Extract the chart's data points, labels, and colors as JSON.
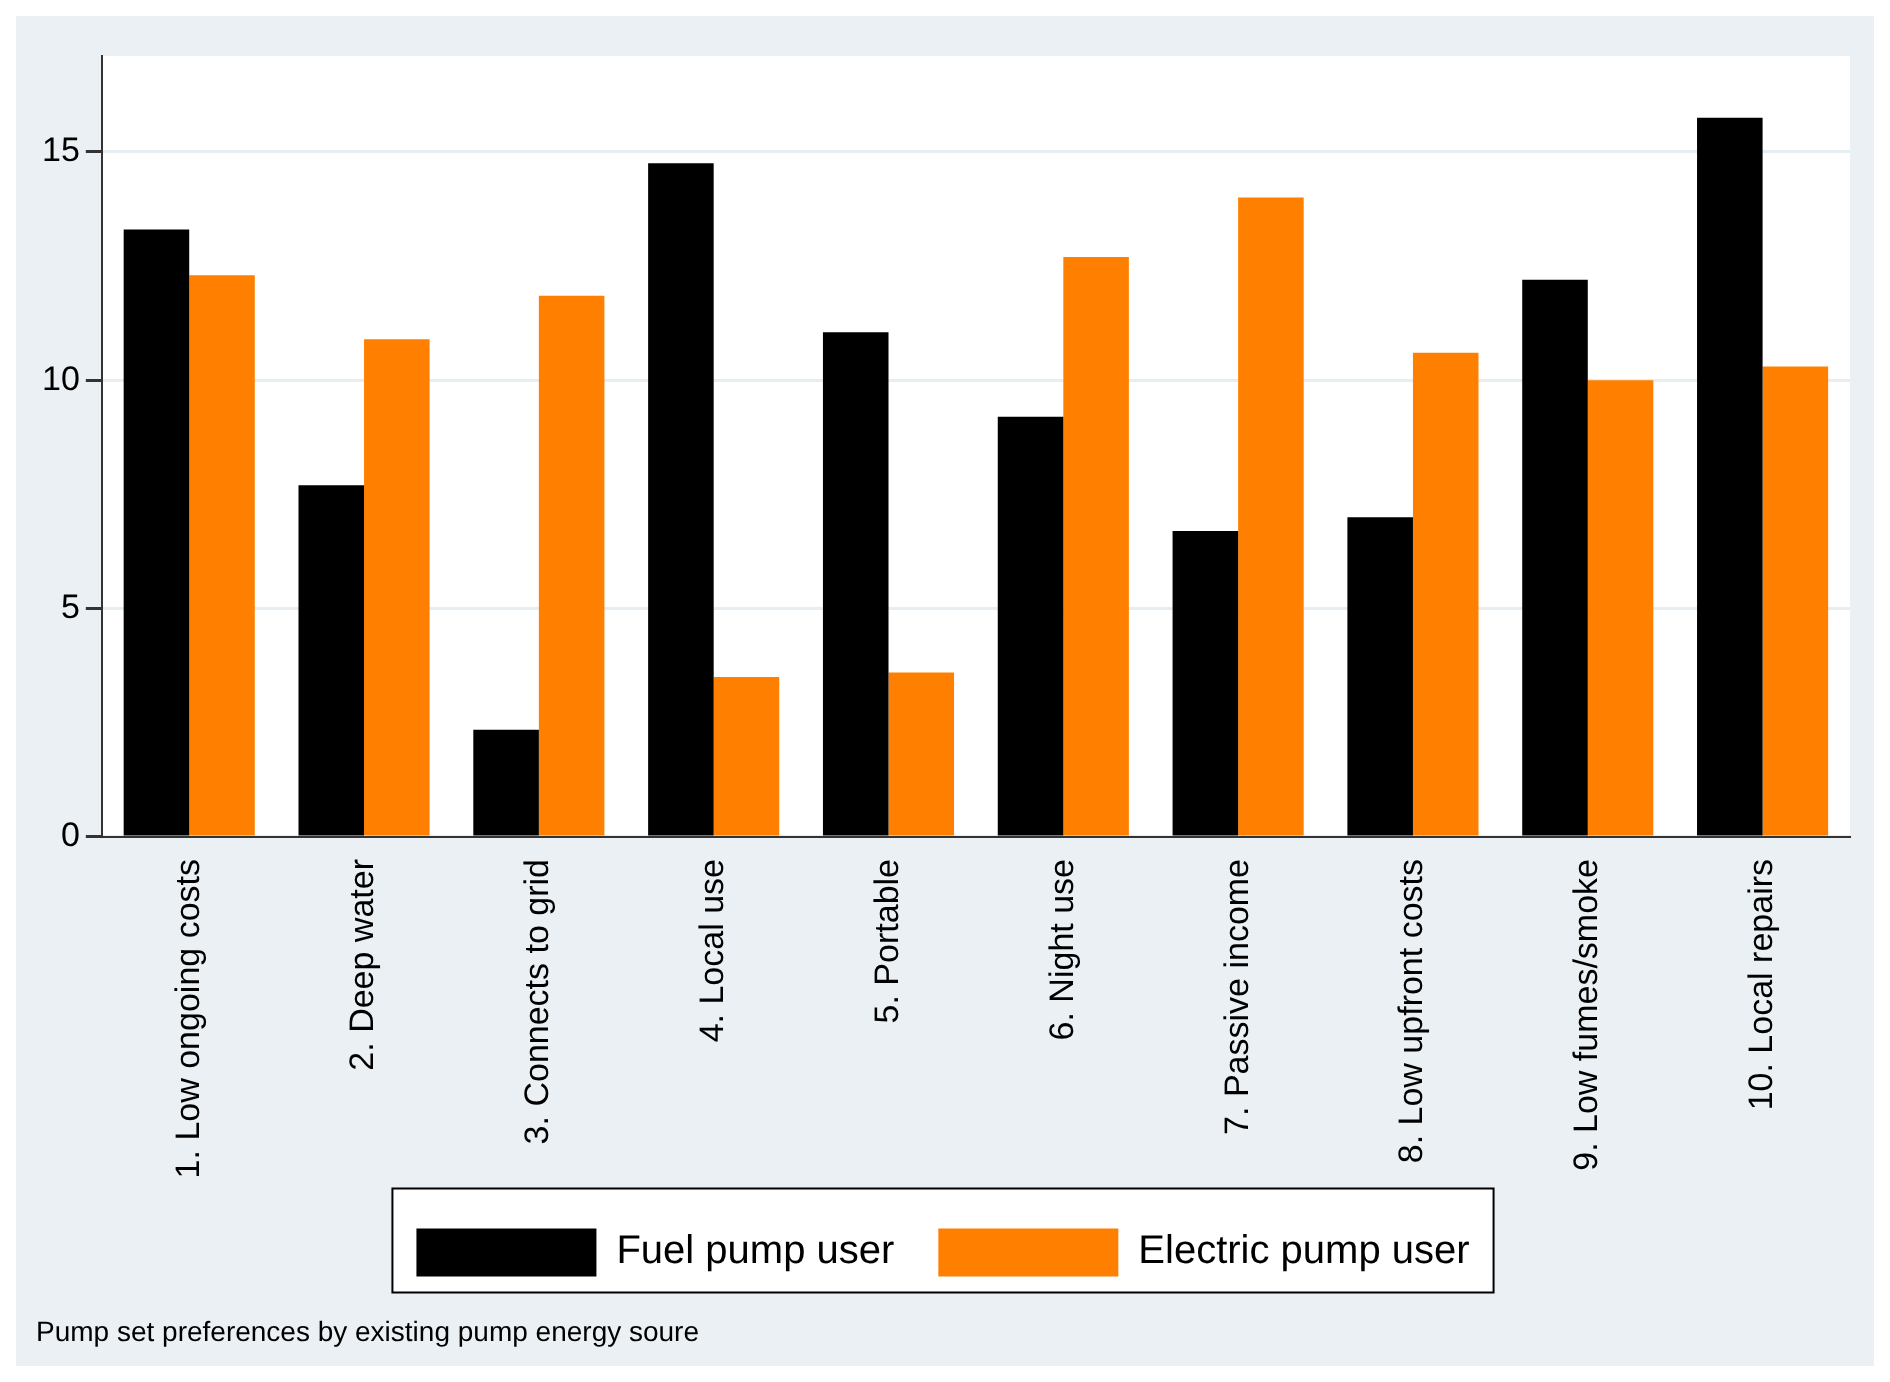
{
  "chart_data": {
    "type": "bar",
    "categories": [
      "1. Low ongoing costs",
      "2. Deep water",
      "3. Connects to grid",
      "4. Local use",
      "5. Portable",
      "6. Night use",
      "7. Passive income",
      "8. Low upfront costs",
      "9. Low fumes/smoke",
      "10. Local repairs"
    ],
    "series": [
      {
        "name": "Fuel pump user",
        "color": "#000000",
        "values": [
          13.3,
          7.7,
          2.35,
          14.75,
          11.05,
          9.2,
          6.7,
          7.0,
          12.2,
          15.75
        ]
      },
      {
        "name": "Electric pump user",
        "color": "#ff8000",
        "values": [
          12.3,
          10.9,
          11.85,
          3.5,
          3.6,
          12.7,
          14.0,
          10.6,
          10.0,
          10.3
        ]
      }
    ],
    "ylim": [
      0,
      17.1
    ],
    "yticks": [
      0,
      5,
      10,
      15
    ],
    "grid": "y",
    "legend": "bottom",
    "annotations": [
      "Pump set preferences by existing pump energy soure"
    ]
  }
}
